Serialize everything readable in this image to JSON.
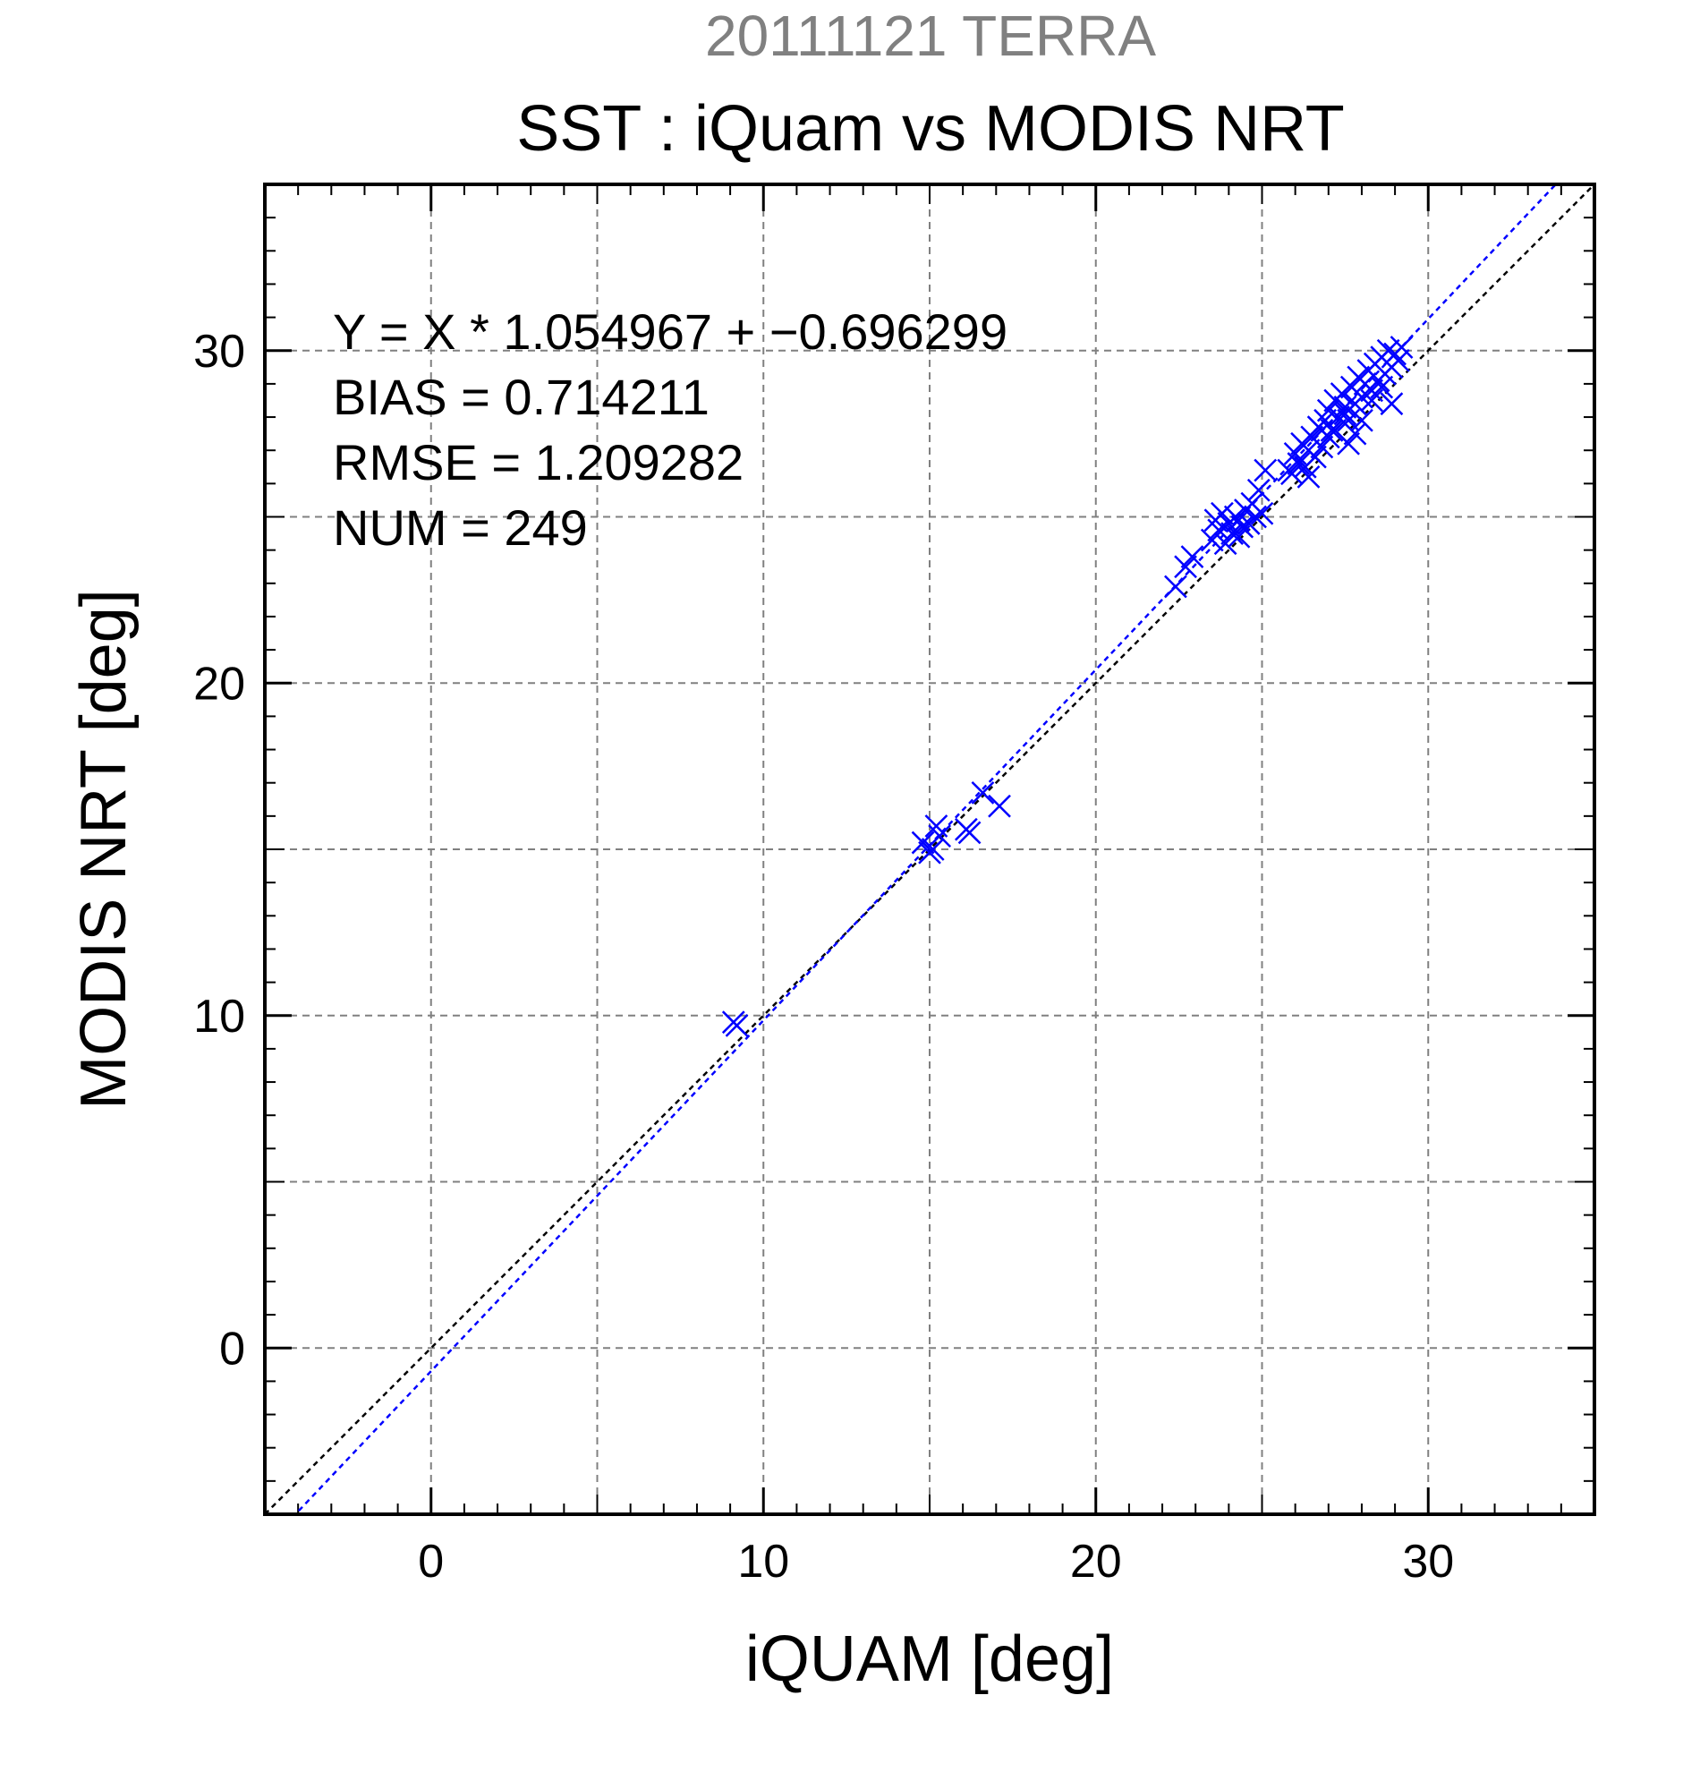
{
  "chart_data": {
    "type": "scatter",
    "title": "SST : iQuam vs MODIS NRT",
    "subtitle": "20111121 TERRA",
    "xlabel": "iQUAM [deg]",
    "ylabel": "MODIS NRT [deg]",
    "xlim": [
      -5,
      35
    ],
    "ylim": [
      -5,
      35
    ],
    "xticks": [
      0,
      10,
      20,
      30
    ],
    "yticks": [
      0,
      10,
      20,
      30
    ],
    "grid": true,
    "colors": {
      "points": "#0000ff",
      "fit_line": "#0000ff",
      "identity_line": "#000000",
      "subtitle": "#808080"
    },
    "annotations": [
      "Y = X * 1.054967 + −0.696299",
      "BIAS = 0.714211",
      "RMSE = 1.209282",
      "NUM = 249"
    ],
    "fit": {
      "slope": 1.054967,
      "intercept": -0.696299
    },
    "identity": {
      "slope": 1,
      "intercept": 0
    },
    "series": [
      {
        "marker": "x",
        "points": [
          [
            9.1,
            9.8
          ],
          [
            9.2,
            9.7
          ],
          [
            14.8,
            15.2
          ],
          [
            15.1,
            15.0
          ],
          [
            15.0,
            14.9
          ],
          [
            15.2,
            15.7
          ],
          [
            15.3,
            15.4
          ],
          [
            16.1,
            15.6
          ],
          [
            16.2,
            15.5
          ],
          [
            16.6,
            16.7
          ],
          [
            17.1,
            16.3
          ],
          [
            22.4,
            22.9
          ],
          [
            22.7,
            23.5
          ],
          [
            22.9,
            23.8
          ],
          [
            23.5,
            24.3
          ],
          [
            23.6,
            24.9
          ],
          [
            23.7,
            24.6
          ],
          [
            23.8,
            25.1
          ],
          [
            23.9,
            24.2
          ],
          [
            24.0,
            24.8
          ],
          [
            24.1,
            24.5
          ],
          [
            24.2,
            25.0
          ],
          [
            24.3,
            24.4
          ],
          [
            24.3,
            24.9
          ],
          [
            24.4,
            24.7
          ],
          [
            24.5,
            25.2
          ],
          [
            24.6,
            24.8
          ],
          [
            24.7,
            25.4
          ],
          [
            24.8,
            25.0
          ],
          [
            24.9,
            25.8
          ],
          [
            25.0,
            25.1
          ],
          [
            25.1,
            26.4
          ],
          [
            25.9,
            26.3
          ],
          [
            26.0,
            26.9
          ],
          [
            26.1,
            26.6
          ],
          [
            26.2,
            27.2
          ],
          [
            26.3,
            26.5
          ],
          [
            26.4,
            27.0
          ],
          [
            26.5,
            27.4
          ],
          [
            26.6,
            26.8
          ],
          [
            26.7,
            27.7
          ],
          [
            26.8,
            27.1
          ],
          [
            26.9,
            27.9
          ],
          [
            27.0,
            28.2
          ],
          [
            27.1,
            27.6
          ],
          [
            27.2,
            28.5
          ],
          [
            27.3,
            28.0
          ],
          [
            27.4,
            28.7
          ],
          [
            27.5,
            28.3
          ],
          [
            27.6,
            27.9
          ],
          [
            27.7,
            28.9
          ],
          [
            27.8,
            28.4
          ],
          [
            27.9,
            29.2
          ],
          [
            28.0,
            28.6
          ],
          [
            28.1,
            29.0
          ],
          [
            28.2,
            29.4
          ],
          [
            28.3,
            28.8
          ],
          [
            28.4,
            29.6
          ],
          [
            28.5,
            29.1
          ],
          [
            28.6,
            29.8
          ],
          [
            28.7,
            29.3
          ],
          [
            28.8,
            30.0
          ],
          [
            28.9,
            29.5
          ],
          [
            29.0,
            29.9
          ],
          [
            29.1,
            29.7
          ],
          [
            29.2,
            30.1
          ],
          [
            27.6,
            27.2
          ],
          [
            27.8,
            27.5
          ],
          [
            28.0,
            27.9
          ],
          [
            28.9,
            28.4
          ],
          [
            26.4,
            26.2
          ],
          [
            25.8,
            26.4
          ],
          [
            27.2,
            27.6
          ],
          [
            27.5,
            28.1
          ],
          [
            28.3,
            28.5
          ],
          [
            28.6,
            28.9
          ],
          [
            27.0,
            27.4
          ],
          [
            26.8,
            27.6
          ]
        ]
      }
    ]
  }
}
